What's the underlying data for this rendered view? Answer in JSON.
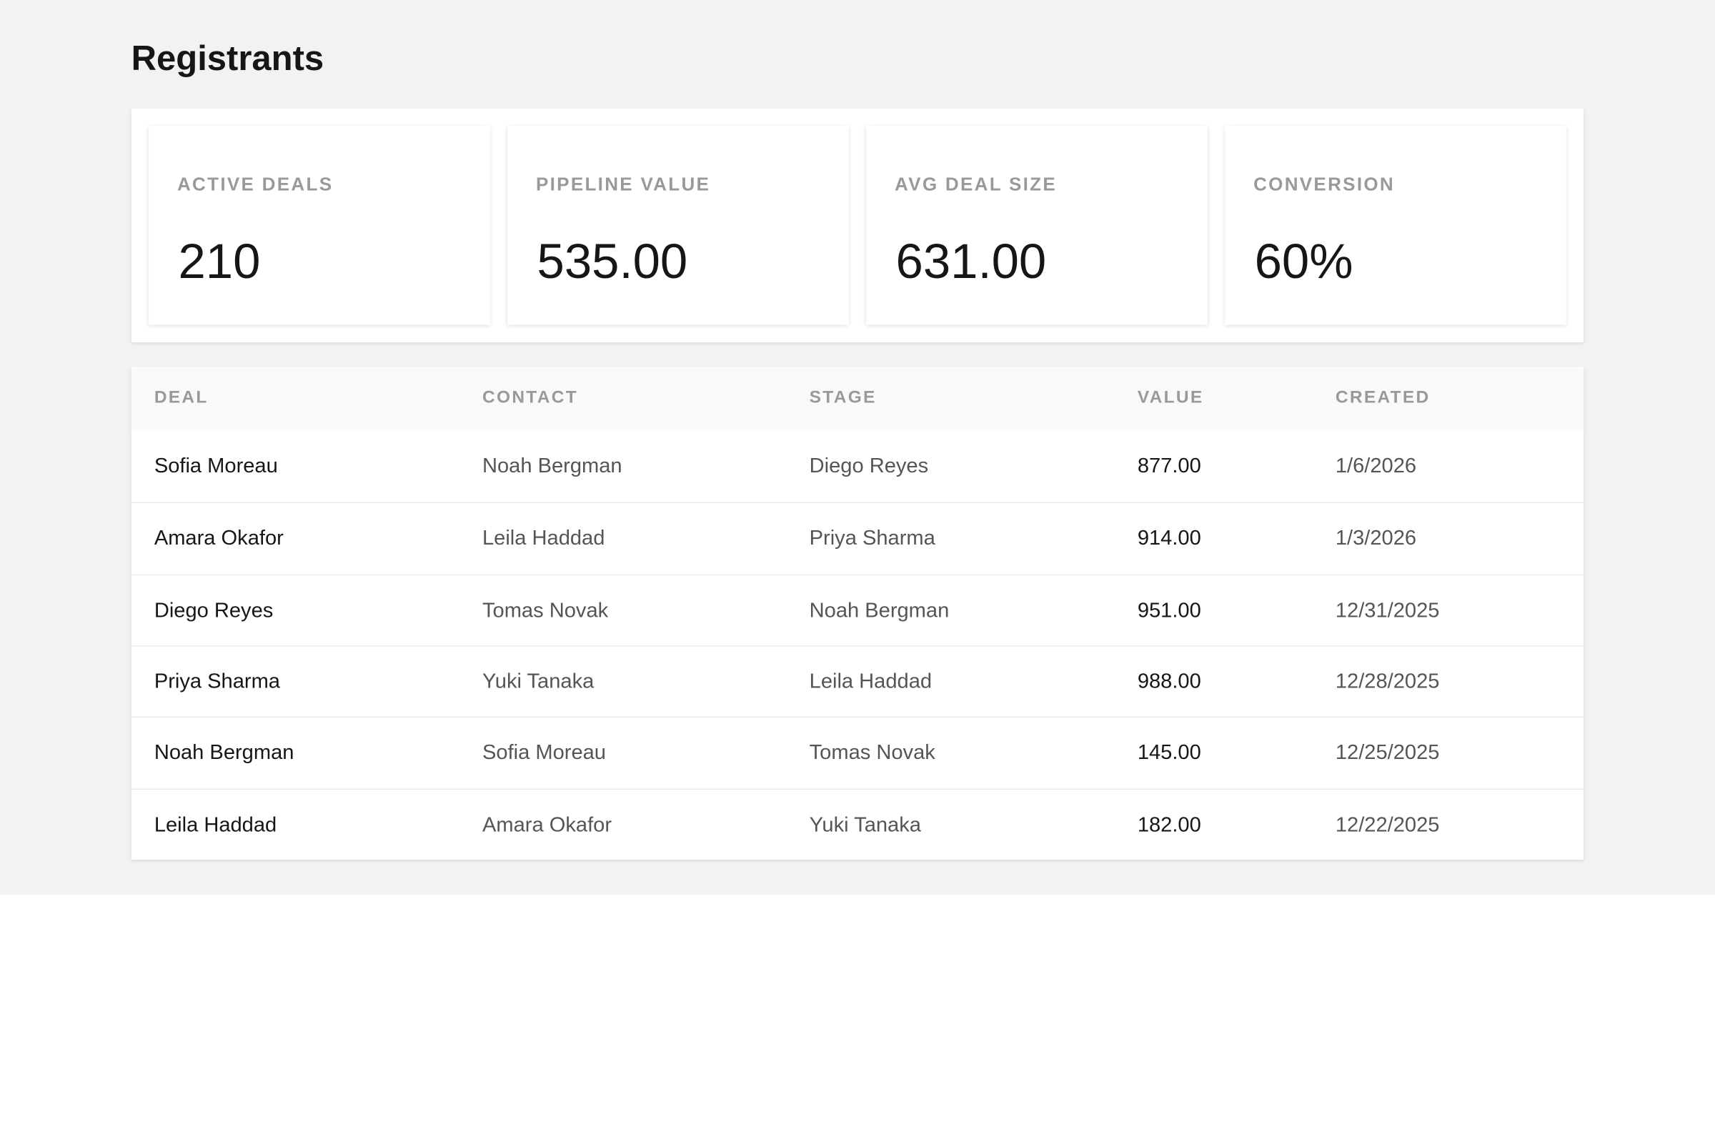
{
  "header": {
    "title": "Registrants"
  },
  "stats": [
    {
      "label": "ACTIVE DEALS",
      "value": "210"
    },
    {
      "label": "PIPELINE VALUE",
      "value": "535.00"
    },
    {
      "label": "AVG DEAL SIZE",
      "value": "631.00"
    },
    {
      "label": "CONVERSION",
      "value": "60%"
    }
  ],
  "table": {
    "columns": [
      "DEAL",
      "CONTACT",
      "STAGE",
      "VALUE",
      "CREATED"
    ],
    "rows": [
      [
        "Sofia Moreau",
        "Noah Bergman",
        "Diego Reyes",
        "877.00",
        "1/6/2026"
      ],
      [
        "Amara Okafor",
        "Leila Haddad",
        "Priya Sharma",
        "914.00",
        "1/3/2026"
      ],
      [
        "Diego Reyes",
        "Tomas Novak",
        "Noah Bergman",
        "951.00",
        "12/31/2025"
      ],
      [
        "Priya Sharma",
        "Yuki Tanaka",
        "Leila Haddad",
        "988.00",
        "12/28/2025"
      ],
      [
        "Noah Bergman",
        "Sofia Moreau",
        "Tomas Novak",
        "145.00",
        "12/25/2025"
      ],
      [
        "Leila Haddad",
        "Amara Okafor",
        "Yuki Tanaka",
        "182.00",
        "12/22/2025"
      ]
    ]
  }
}
